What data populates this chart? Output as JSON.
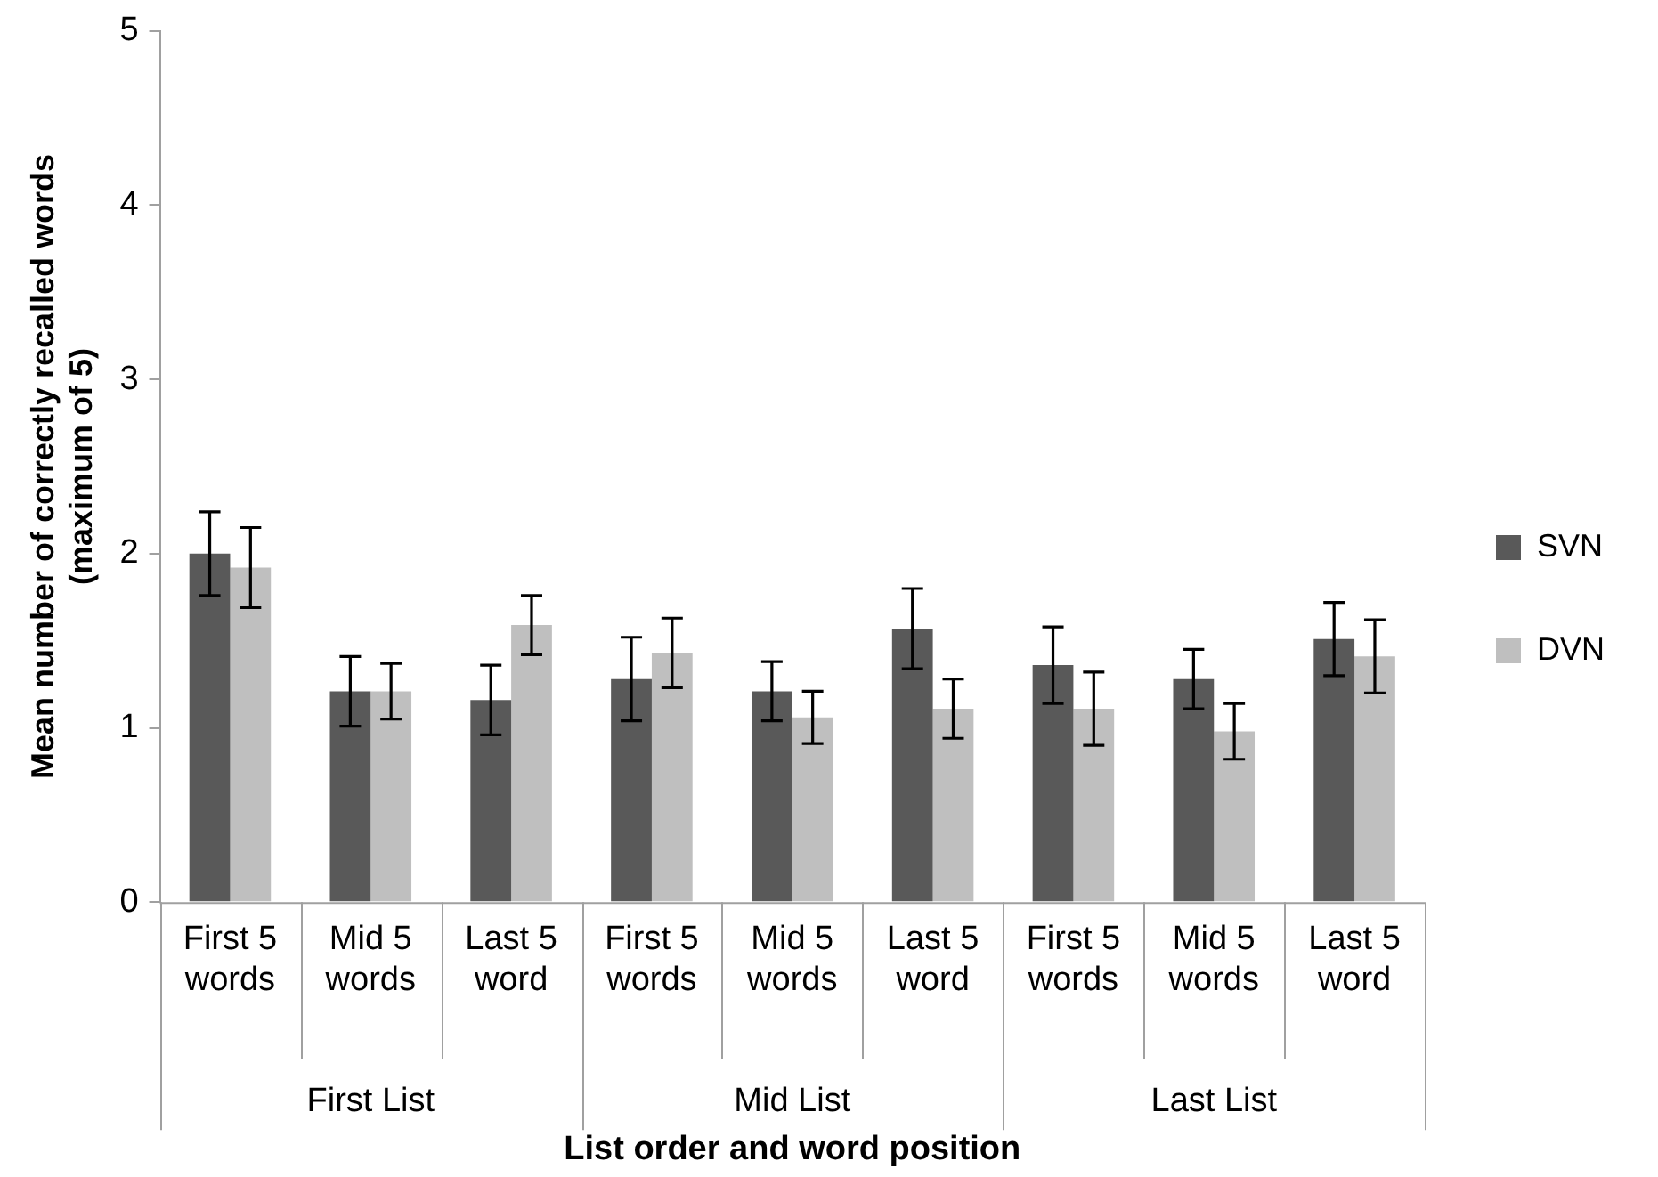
{
  "chart_data": {
    "type": "bar",
    "xlabel": "List order and word position",
    "ylabel": "Mean number of correctly recalled words (maximum of 5)",
    "categories": [
      "First 5 words",
      "Mid 5 words",
      "Last 5 word",
      "First 5 words",
      "Mid 5 words",
      "Last 5 word",
      "First 5 words",
      "Mid 5 words",
      "Last 5 word"
    ],
    "annotations": [
      "First List",
      "Mid List",
      "Last List"
    ],
    "series": [
      {
        "name": "SVN",
        "color": "#595959",
        "values": [
          2.0,
          1.21,
          1.16,
          1.28,
          1.21,
          1.57,
          1.36,
          1.28,
          1.51
        ],
        "errors": [
          0.24,
          0.2,
          0.2,
          0.24,
          0.17,
          0.23,
          0.22,
          0.17,
          0.21
        ]
      },
      {
        "name": "DVN",
        "color": "#bfbfbf",
        "values": [
          1.92,
          1.21,
          1.59,
          1.43,
          1.06,
          1.11,
          1.11,
          0.98,
          1.41
        ],
        "errors": [
          0.23,
          0.16,
          0.17,
          0.2,
          0.15,
          0.17,
          0.21,
          0.16,
          0.21
        ]
      }
    ],
    "ylim": [
      0,
      5
    ],
    "yticks": [
      0,
      1,
      2,
      3,
      4,
      5
    ],
    "grid": false,
    "legend": "right"
  }
}
